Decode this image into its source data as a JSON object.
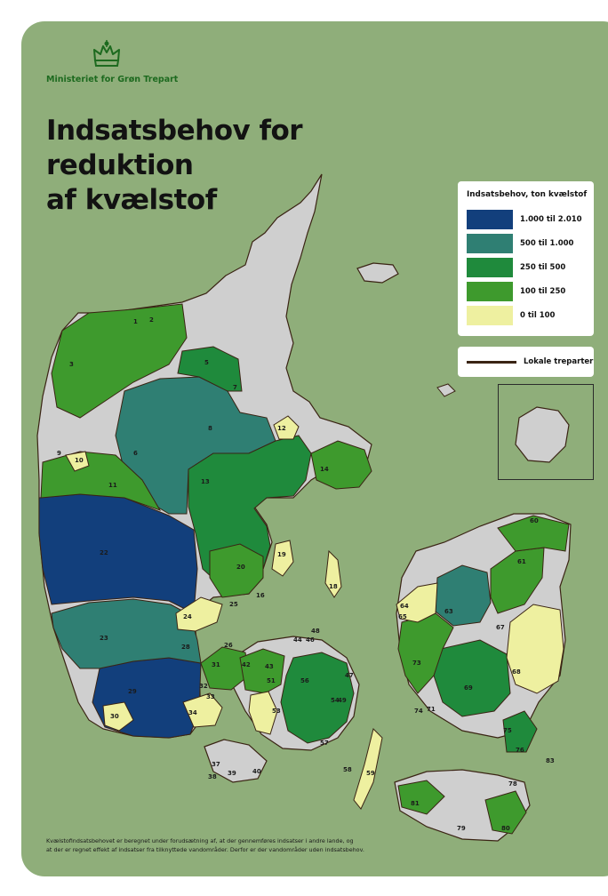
{
  "header": {
    "ministry": "Ministeriet for Grøn Trepart"
  },
  "title": {
    "line1": "Indsatsbehov for reduktion",
    "line2": "af kvælstof"
  },
  "legend": {
    "title": "Indsatsbehov, ton kvælstof",
    "classes": [
      {
        "label": "1.000 til 2.010",
        "color": "#123f7c"
      },
      {
        "label": "500 til 1.000",
        "color": "#2f7f73"
      },
      {
        "label": "250 til 500",
        "color": "#1f8a3c"
      },
      {
        "label": "100 til 250",
        "color": "#3e9a2d"
      },
      {
        "label": "0 til 100",
        "color": "#eef0a0"
      }
    ],
    "line_label": "Lokale treparter",
    "line_color": "#3a2414"
  },
  "map": {
    "land_color": "#cfcfcf",
    "background_color": "#8fae7a",
    "region_labels": [
      "1",
      "2",
      "3",
      "5",
      "6",
      "7",
      "8",
      "9",
      "10",
      "11",
      "12",
      "13",
      "14",
      "16",
      "18",
      "19",
      "20",
      "22",
      "23",
      "24",
      "25",
      "26",
      "28",
      "29",
      "30",
      "31",
      "32",
      "33",
      "34",
      "37",
      "38",
      "39",
      "40",
      "42",
      "43",
      "44",
      "46",
      "47",
      "48",
      "49",
      "51",
      "53",
      "54",
      "56",
      "57",
      "58",
      "59",
      "60",
      "61",
      "63",
      "64",
      "65",
      "67",
      "68",
      "69",
      "71",
      "73",
      "74",
      "75",
      "76",
      "78",
      "79",
      "80",
      "81",
      "83"
    ]
  },
  "footnote": {
    "line1": "Kvælstofindsatsbehovet er beregnet under forudsætning af, at der gennemføres indsatser i andre lande, og",
    "line2": "at der er regnet effekt af indsatser fra tilknyttede vandområder. Derfor er der vandområder uden indsatsbehov."
  }
}
